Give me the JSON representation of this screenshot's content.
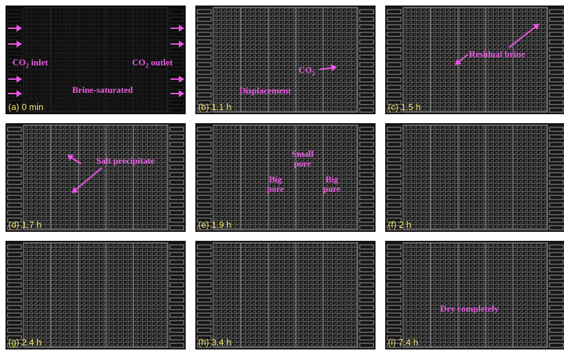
{
  "panels": [
    {
      "label": "(a) 0 min",
      "annotations": {
        "inlet": "CO",
        "inlet_sub": "2",
        "inlet_suffix": " inlet",
        "outlet": "CO",
        "outlet_sub": "2",
        "outlet_suffix": " outlet",
        "brine": "Brine-saturated"
      }
    },
    {
      "label": "(b) 1.1 h",
      "annotations": {
        "co2": "CO",
        "co2_sub": "2",
        "displacement": "Displacement"
      }
    },
    {
      "label": "(c) 1.5 h",
      "annotations": {
        "residual": "Residual brine"
      }
    },
    {
      "label": "(d) 1.7 h",
      "annotations": {
        "salt": "Salt precipitate"
      }
    },
    {
      "label": "(e) 1.9 h",
      "annotations": {
        "small": "Small",
        "small2": "pore",
        "big1": "Big",
        "big1b": "pore",
        "big2": "Big",
        "big2b": "pore"
      }
    },
    {
      "label": "(f) 2 h",
      "annotations": {}
    },
    {
      "label": "(g) 2.4 h",
      "annotations": {}
    },
    {
      "label": "(h) 3.4 h",
      "annotations": {}
    },
    {
      "label": "(i) 7.4 h",
      "annotations": {
        "dry": "Dry completely"
      }
    }
  ],
  "colors": {
    "label": "#f0e26a",
    "annotation": "#e85be3",
    "background": "#161616"
  }
}
